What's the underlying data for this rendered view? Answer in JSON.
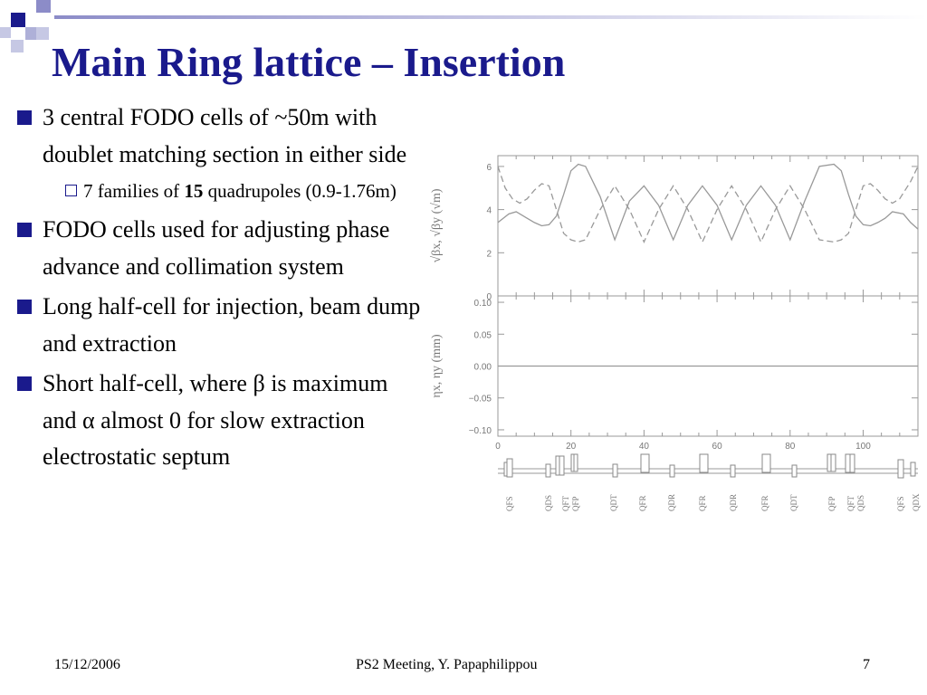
{
  "slide": {
    "title": "Main Ring lattice – Insertion",
    "bullets": [
      {
        "level": 1,
        "text": "3 central FODO cells of ~50m with doublet matching section in either side"
      },
      {
        "level": 2,
        "pre": "7 families of ",
        "bold": "15",
        "post": " quadrupoles (0.9-1.76m)"
      },
      {
        "level": 1,
        "text": "FODO cells used for adjusting phase advance and collimation system"
      },
      {
        "level": 1,
        "text": "Long half-cell for injection, beam dump and extraction"
      },
      {
        "level": 1,
        "text": "Short half-cell, where β is maximum and α almost 0 for slow extraction electrostatic septum"
      }
    ],
    "footer": {
      "date": "15/12/2006",
      "center": "PS2 Meeting, Y. Papaphilippou",
      "page": "7"
    },
    "colors": {
      "title": "#1a1a8c",
      "bullet": "#1a1a8c",
      "corner_dark": "#1a1a8c",
      "corner_light": "#8c8cc8"
    }
  },
  "chart_data": [
    {
      "type": "line",
      "ylabel": "√βx, √βy (√m)",
      "ylim": [
        0,
        6.5
      ],
      "yticks": [
        "0",
        "2",
        "4",
        "6"
      ],
      "xlim": [
        0,
        115
      ],
      "series": [
        {
          "style": "solid",
          "x": [
            0,
            3,
            5,
            8,
            10,
            12,
            14,
            16,
            18,
            20,
            22,
            24,
            28,
            32,
            36,
            40,
            44,
            48,
            52,
            56,
            60,
            64,
            68,
            72,
            76,
            80,
            84,
            88,
            92,
            94,
            96,
            98,
            100,
            102,
            104,
            106,
            108,
            111,
            113,
            115
          ],
          "y": [
            3.4,
            3.8,
            3.9,
            3.6,
            3.4,
            3.25,
            3.3,
            3.7,
            4.7,
            5.8,
            6.1,
            6.0,
            4.6,
            2.6,
            4.4,
            5.1,
            4.2,
            2.6,
            4.2,
            5.1,
            4.2,
            2.6,
            4.2,
            5.1,
            4.2,
            2.6,
            4.4,
            6.0,
            6.1,
            5.8,
            4.7,
            3.7,
            3.3,
            3.25,
            3.4,
            3.6,
            3.9,
            3.8,
            3.4,
            3.1
          ]
        },
        {
          "style": "dashed",
          "x": [
            0,
            2,
            4,
            6,
            8,
            10,
            12,
            14,
            16,
            18,
            20,
            22,
            24,
            28,
            32,
            36,
            40,
            44,
            48,
            52,
            56,
            60,
            64,
            68,
            72,
            76,
            80,
            84,
            88,
            92,
            94,
            96,
            98,
            100,
            102,
            104,
            106,
            108,
            110,
            113,
            115
          ],
          "y": [
            6.0,
            5.0,
            4.5,
            4.3,
            4.5,
            4.9,
            5.2,
            5.1,
            4.0,
            2.9,
            2.6,
            2.5,
            2.6,
            4.0,
            5.1,
            4.0,
            2.5,
            4.0,
            5.1,
            4.0,
            2.5,
            4.0,
            5.1,
            4.0,
            2.5,
            4.0,
            5.1,
            4.0,
            2.6,
            2.5,
            2.6,
            2.9,
            4.0,
            5.1,
            5.2,
            4.9,
            4.5,
            4.3,
            4.5,
            5.3,
            6.0
          ]
        }
      ]
    },
    {
      "type": "line",
      "ylabel": "ηx, ηy (mm)",
      "ylim": [
        -0.11,
        0.11
      ],
      "yticks": [
        "0.10",
        "0.05",
        "0.00",
        "−0.05",
        "−0.10"
      ],
      "xlabel": "",
      "xticks": [
        "0",
        "20",
        "40",
        "60",
        "80",
        "100"
      ],
      "xlim": [
        0,
        115
      ],
      "series": [
        {
          "style": "solid",
          "x": [
            0,
            115
          ],
          "y": [
            0,
            0
          ]
        }
      ]
    }
  ],
  "lattice": {
    "labels": [
      "QFS",
      "QDS",
      "QFT",
      "QFP",
      "QDT",
      "QFR",
      "QDR",
      "QFR",
      "QDR",
      "QFR",
      "QDT",
      "QFP",
      "QFT",
      "QDS",
      "QFS",
      "QDX"
    ]
  }
}
